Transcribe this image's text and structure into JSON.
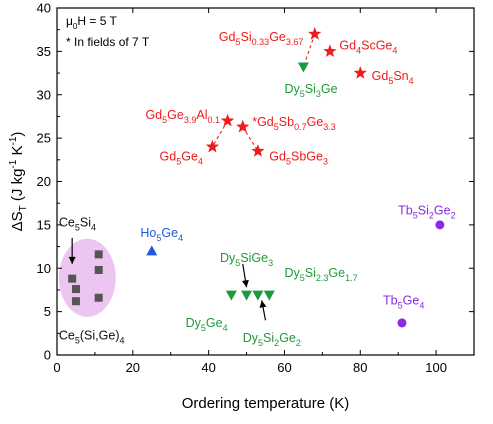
{
  "chart_data": {
    "type": "scatter",
    "xlabel": "Ordering temperature (K)",
    "ylabel_parts": [
      {
        "t": "ΔS",
        "s": ""
      },
      {
        "t": "T",
        "s": "sub"
      },
      {
        "t": " (J kg",
        "s": ""
      },
      {
        "t": "-1",
        "s": "sup"
      },
      {
        "t": " K",
        "s": ""
      },
      {
        "t": "-1",
        "s": "sup"
      },
      {
        "t": ")",
        "s": ""
      }
    ],
    "xlim": [
      0,
      110
    ],
    "ylim": [
      0,
      40
    ],
    "xticks": [
      0,
      20,
      40,
      60,
      80,
      100
    ],
    "yticks": [
      0,
      5,
      10,
      15,
      20,
      25,
      30,
      35,
      40
    ],
    "notes": [
      {
        "parts": [
          {
            "t": "μ",
            "s": ""
          },
          {
            "t": "0",
            "s": "sub"
          },
          {
            "t": "H = 5 T",
            "s": ""
          }
        ]
      },
      {
        "parts": [
          {
            "t": "* In fields of 7 T",
            "s": ""
          }
        ]
      }
    ],
    "colors": {
      "red": "#ee1c1c",
      "green": "#1e9a3a",
      "blue": "#1f5ad8",
      "purple": "#8a2be2",
      "gray": "#555555",
      "ellipse": "#ecc6f1"
    },
    "series": [
      {
        "name": "",
        "marker": "square",
        "color": "#555555",
        "points": [
          [
            4,
            8.8
          ],
          [
            5,
            7.6
          ],
          [
            5,
            6.2
          ],
          [
            11,
            11.6
          ],
          [
            11,
            9.8
          ],
          [
            11,
            6.6
          ]
        ]
      },
      {
        "name": "",
        "marker": "triangle-up",
        "color": "#1f5ad8",
        "points": [
          [
            25,
            12
          ]
        ]
      },
      {
        "name": "",
        "marker": "circle",
        "color": "#8a2be2",
        "points": [
          [
            91,
            3.7
          ],
          [
            101,
            15
          ]
        ]
      },
      {
        "name": "",
        "marker": "triangle-down",
        "color": "#1e9a3a",
        "points": [
          [
            65,
            33.2
          ],
          [
            46,
            6.9
          ],
          [
            50,
            6.9
          ],
          [
            53,
            6.9
          ],
          [
            56,
            6.9
          ]
        ]
      },
      {
        "name": "",
        "marker": "star",
        "color": "#ee1c1c",
        "points": [
          [
            68,
            37
          ],
          [
            72,
            35
          ],
          [
            80,
            32.5
          ],
          [
            45,
            27
          ],
          [
            49,
            26.3
          ],
          [
            53,
            23.5
          ],
          [
            41,
            24
          ]
        ]
      }
    ],
    "dashed_lines": [
      [
        [
          68,
          37
        ],
        [
          65,
          33.2
        ]
      ],
      [
        [
          45,
          27
        ],
        [
          41,
          24
        ]
      ],
      [
        [
          49,
          26.3
        ],
        [
          53,
          23.5
        ]
      ]
    ],
    "arrows": [
      [
        [
          4,
          13.5
        ],
        [
          4,
          10.5
        ]
      ],
      [
        [
          49,
          10.5
        ],
        [
          50,
          7.8
        ]
      ],
      [
        [
          55,
          4
        ],
        [
          54,
          6.3
        ]
      ]
    ],
    "labels": [
      {
        "color": "#ee1c1c",
        "anchor": "end",
        "at": [
          65,
          36.2
        ],
        "parts": [
          {
            "t": "Gd",
            "s": ""
          },
          {
            "t": "5",
            "s": "sub"
          },
          {
            "t": "Si",
            "s": ""
          },
          {
            "t": "0.33",
            "s": "sub"
          },
          {
            "t": "Ge",
            "s": ""
          },
          {
            "t": "3.67",
            "s": "sub"
          }
        ]
      },
      {
        "color": "#ee1c1c",
        "anchor": "start",
        "at": [
          74.5,
          35.2
        ],
        "parts": [
          {
            "t": "Gd",
            "s": ""
          },
          {
            "t": "4",
            "s": "sub"
          },
          {
            "t": "ScGe",
            "s": ""
          },
          {
            "t": "4",
            "s": "sub"
          }
        ]
      },
      {
        "color": "#ee1c1c",
        "anchor": "start",
        "at": [
          83,
          31.7
        ],
        "parts": [
          {
            "t": "Gd",
            "s": ""
          },
          {
            "t": "5",
            "s": "sub"
          },
          {
            "t": "Sn",
            "s": ""
          },
          {
            "t": "4",
            "s": "sub"
          }
        ]
      },
      {
        "color": "#1e9a3a",
        "anchor": "start",
        "at": [
          60,
          30.2
        ],
        "parts": [
          {
            "t": "Dy",
            "s": ""
          },
          {
            "t": "5",
            "s": "sub"
          },
          {
            "t": "Si",
            "s": ""
          },
          {
            "t": "3",
            "s": "sub"
          },
          {
            "t": "Ge",
            "s": ""
          }
        ]
      },
      {
        "color": "#ee1c1c",
        "anchor": "end",
        "at": [
          43,
          27.2
        ],
        "parts": [
          {
            "t": "Gd",
            "s": ""
          },
          {
            "t": "5",
            "s": "sub"
          },
          {
            "t": "Ge",
            "s": ""
          },
          {
            "t": "3.9",
            "s": "sub"
          },
          {
            "t": "Al",
            "s": ""
          },
          {
            "t": "0.1",
            "s": "sub"
          }
        ]
      },
      {
        "color": "#ee1c1c",
        "anchor": "start",
        "at": [
          51.5,
          26.4
        ],
        "parts": [
          {
            "t": "*Gd",
            "s": ""
          },
          {
            "t": "5",
            "s": "sub"
          },
          {
            "t": "Sb",
            "s": ""
          },
          {
            "t": "0.7",
            "s": "sub"
          },
          {
            "t": "Ge",
            "s": ""
          },
          {
            "t": "3.3",
            "s": "sub"
          }
        ]
      },
      {
        "color": "#ee1c1c",
        "anchor": "end",
        "at": [
          38.5,
          22.4
        ],
        "parts": [
          {
            "t": "Gd",
            "s": ""
          },
          {
            "t": "5",
            "s": "sub"
          },
          {
            "t": "Ge",
            "s": ""
          },
          {
            "t": "4",
            "s": "sub"
          }
        ]
      },
      {
        "color": "#ee1c1c",
        "anchor": "start",
        "at": [
          56,
          22.4
        ],
        "parts": [
          {
            "t": "Gd",
            "s": ""
          },
          {
            "t": "5",
            "s": "sub"
          },
          {
            "t": "SbGe",
            "s": ""
          },
          {
            "t": "3",
            "s": "sub"
          }
        ]
      },
      {
        "color": "#1f5ad8",
        "anchor": "start",
        "at": [
          22,
          13.6
        ],
        "parts": [
          {
            "t": "Ho",
            "s": ""
          },
          {
            "t": "5",
            "s": "sub"
          },
          {
            "t": "Ge",
            "s": ""
          },
          {
            "t": "4",
            "s": "sub"
          }
        ]
      },
      {
        "color": "#8a2be2",
        "anchor": "start",
        "at": [
          90,
          16.2
        ],
        "parts": [
          {
            "t": "Tb",
            "s": ""
          },
          {
            "t": "5",
            "s": "sub"
          },
          {
            "t": "Si",
            "s": ""
          },
          {
            "t": "2",
            "s": "sub"
          },
          {
            "t": "Ge",
            "s": ""
          },
          {
            "t": "2",
            "s": "sub"
          }
        ]
      },
      {
        "color": "#8a2be2",
        "anchor": "start",
        "at": [
          86,
          5.8
        ],
        "parts": [
          {
            "t": "Tb",
            "s": ""
          },
          {
            "t": "5",
            "s": "sub"
          },
          {
            "t": "Ge",
            "s": ""
          },
          {
            "t": "4",
            "s": "sub"
          }
        ]
      },
      {
        "color": "#1e9a3a",
        "anchor": "start",
        "at": [
          43,
          10.7
        ],
        "parts": [
          {
            "t": "Dy",
            "s": ""
          },
          {
            "t": "5",
            "s": "sub"
          },
          {
            "t": "SiGe",
            "s": ""
          },
          {
            "t": "3",
            "s": "sub"
          }
        ]
      },
      {
        "color": "#1e9a3a",
        "anchor": "start",
        "at": [
          60,
          9.0
        ],
        "parts": [
          {
            "t": "Dy",
            "s": ""
          },
          {
            "t": "5",
            "s": "sub"
          },
          {
            "t": "Si",
            "s": ""
          },
          {
            "t": "2.3",
            "s": "sub"
          },
          {
            "t": "Ge",
            "s": ""
          },
          {
            "t": "1.7",
            "s": "sub"
          }
        ]
      },
      {
        "color": "#1e9a3a",
        "anchor": "end",
        "at": [
          45,
          3.2
        ],
        "parts": [
          {
            "t": "Dy",
            "s": ""
          },
          {
            "t": "5",
            "s": "sub"
          },
          {
            "t": "Ge",
            "s": ""
          },
          {
            "t": "4",
            "s": "sub"
          }
        ]
      },
      {
        "color": "#1e9a3a",
        "anchor": "start",
        "at": [
          49,
          1.5
        ],
        "parts": [
          {
            "t": "Dy",
            "s": ""
          },
          {
            "t": "5",
            "s": "sub"
          },
          {
            "t": "Si",
            "s": ""
          },
          {
            "t": "2",
            "s": "sub"
          },
          {
            "t": "Ge",
            "s": ""
          },
          {
            "t": "2",
            "s": "sub"
          }
        ]
      },
      {
        "color": "#111111",
        "anchor": "start",
        "at": [
          0.5,
          14.8
        ],
        "parts": [
          {
            "t": "Ce",
            "s": ""
          },
          {
            "t": "5",
            "s": "sub"
          },
          {
            "t": "Si",
            "s": ""
          },
          {
            "t": "4",
            "s": "sub"
          }
        ]
      },
      {
        "color": "#111111",
        "anchor": "start",
        "at": [
          0.5,
          1.8
        ],
        "parts": [
          {
            "t": "Ce",
            "s": ""
          },
          {
            "t": "5",
            "s": "sub"
          },
          {
            "t": "(Si,Ge)",
            "s": ""
          },
          {
            "t": "4",
            "s": "sub"
          }
        ]
      }
    ],
    "highlight_ellipse": {
      "cx": 8,
      "cy": 8.9,
      "rx": 7.5,
      "ry": 4.5
    }
  }
}
